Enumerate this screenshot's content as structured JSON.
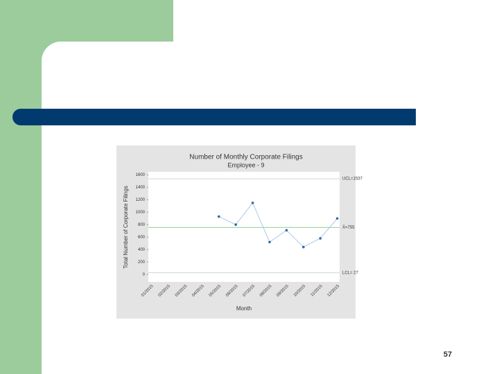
{
  "page_number": "57",
  "chart_data": {
    "type": "line",
    "title": "Number of Monthly Corporate Filings",
    "subtitle": "Employee - 9",
    "y_label": "Total Number of Corporate Filings",
    "x_label": "Month",
    "categories": [
      "01/2015",
      "02/2015",
      "03/2015",
      "04/2015",
      "05/2015",
      "06/2015",
      "07/2015",
      "08/2015",
      "09/2015",
      "10/2015",
      "11/2015",
      "12/2015"
    ],
    "series": [
      {
        "color": "#2b6aa3",
        "values": [
          null,
          null,
          null,
          null,
          930,
          800,
          1150,
          520,
          710,
          440,
          580,
          900
        ]
      }
    ],
    "reference_lines": [
      {
        "value": 1537,
        "label": "UCL=1537",
        "color": "#c9d9c9"
      },
      {
        "value": 755,
        "label": "X̄=755",
        "color": "#8fcf8f"
      },
      {
        "value": 27,
        "label": "LCL= 27",
        "color": "#c9d9c9"
      }
    ],
    "ylim": [
      -120,
      1650
    ],
    "yticks": [
      0,
      200,
      400,
      600,
      800,
      1000,
      1200,
      1400,
      1600
    ]
  }
}
